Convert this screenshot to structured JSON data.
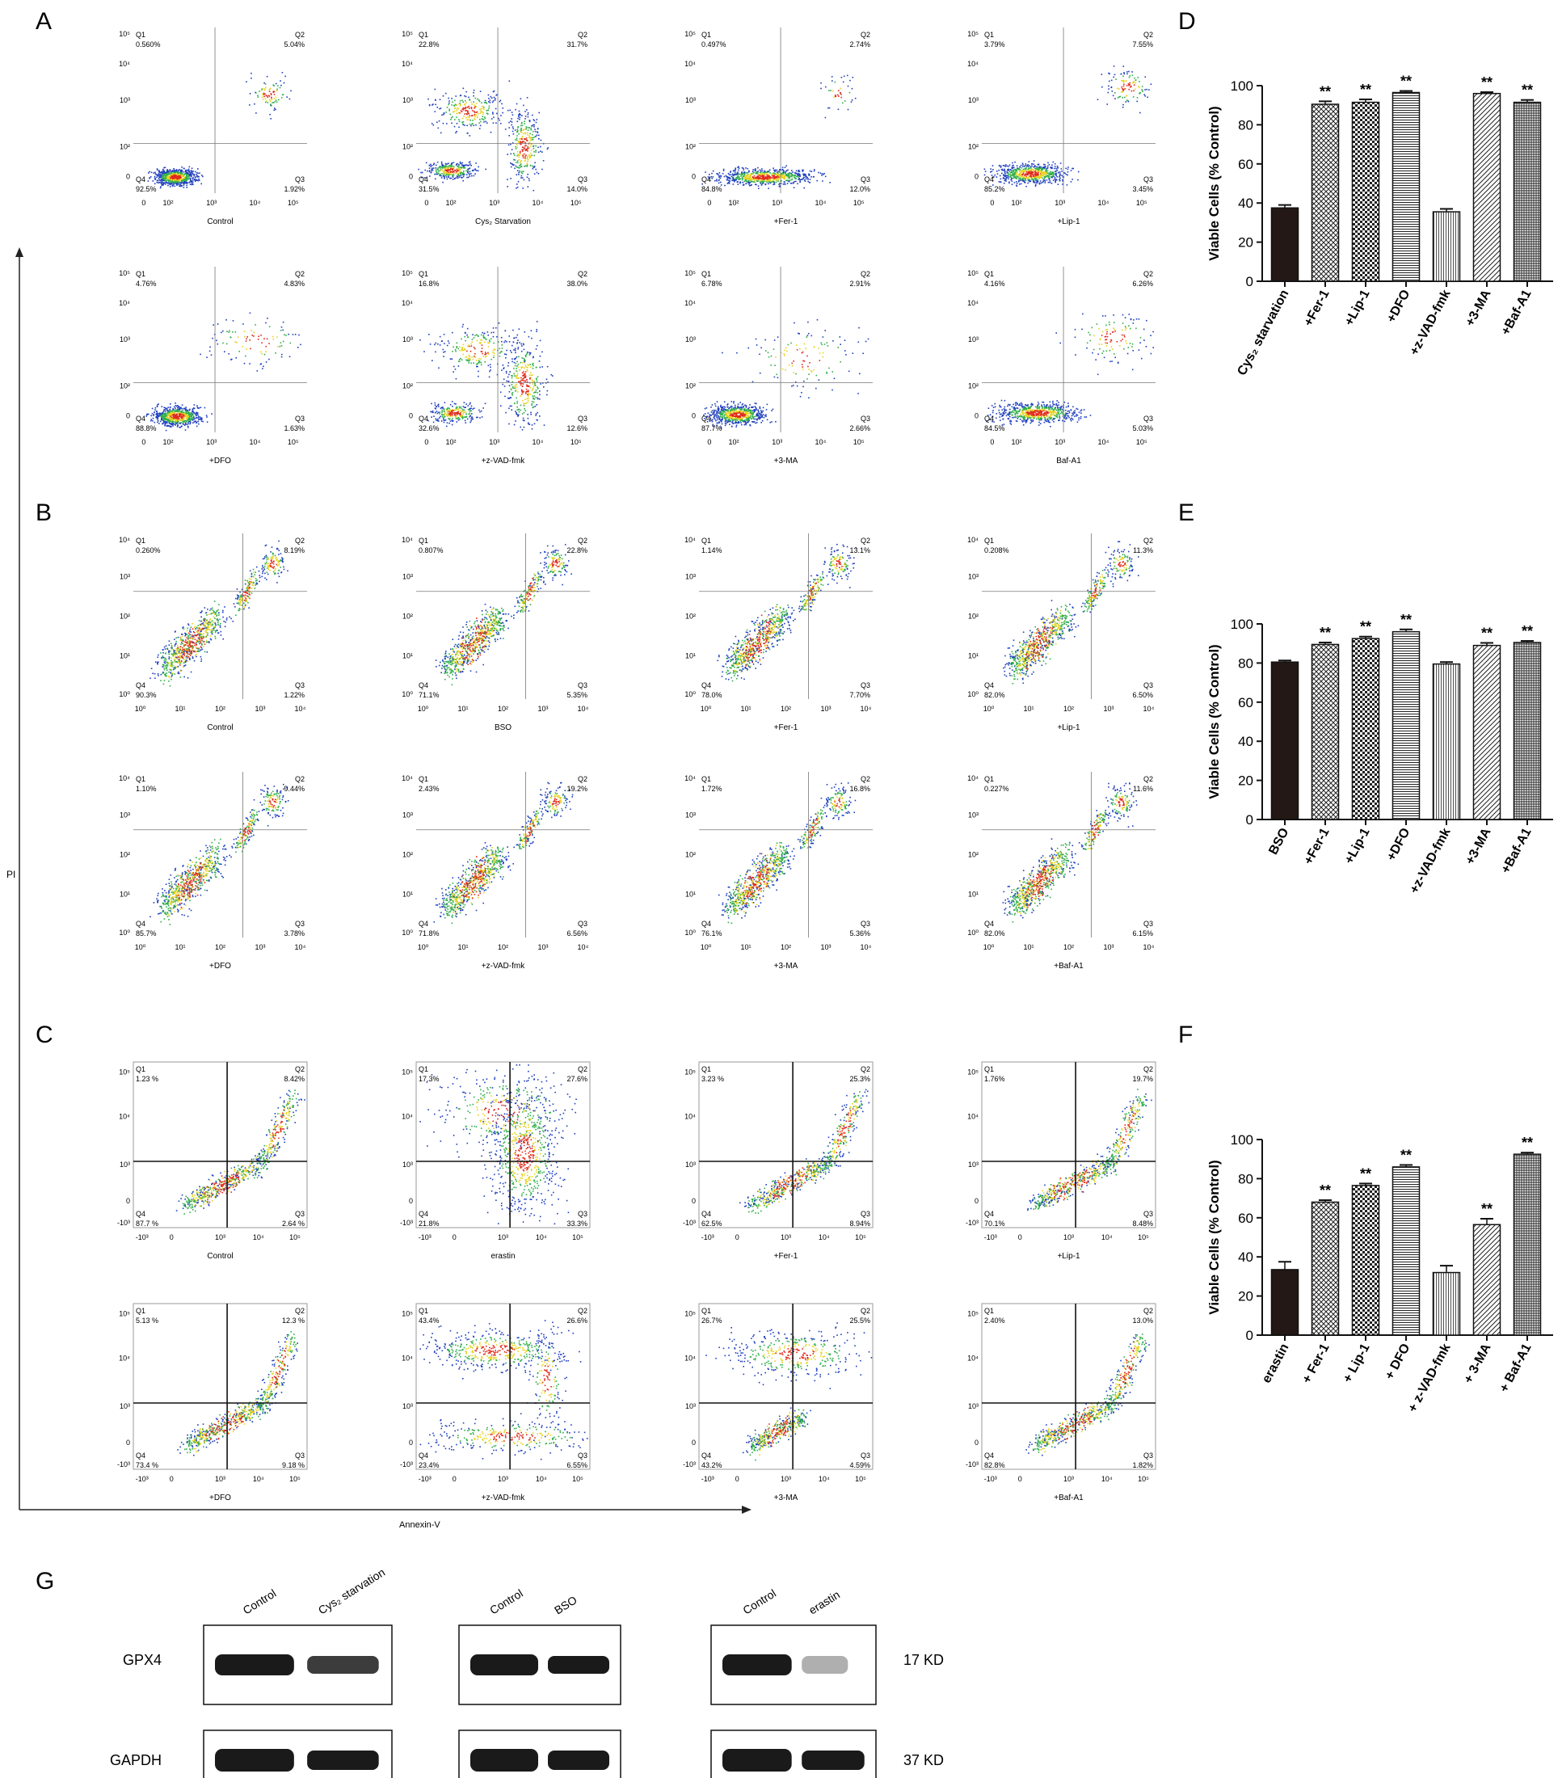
{
  "panel_letters": {
    "A": "A",
    "B": "B",
    "C": "C",
    "D": "D",
    "E": "E",
    "F": "F",
    "G": "G"
  },
  "axes": {
    "pi_label": "PI",
    "annexin_label": "Annexin-V"
  },
  "quadrant_names": [
    "Q1",
    "Q2",
    "Q3",
    "Q4"
  ],
  "flow_rows": [
    {
      "panel": "A",
      "style": "A",
      "ticks_x": [
        "0",
        "10²",
        "10³",
        "10⁴",
        "10⁵"
      ],
      "ticks_y": [
        "0",
        "10²",
        "10³",
        "10⁴",
        "10⁵"
      ],
      "plots": [
        {
          "label": "Control",
          "q": [
            "0.560%",
            "5.04%",
            "1.92%",
            "92.5%"
          ]
        },
        {
          "label": "Cys₂ Starvation",
          "q": [
            "22.8%",
            "31.7%",
            "14.0%",
            "31.5%"
          ]
        },
        {
          "label": "+Fer-1",
          "q": [
            "0.497%",
            "2.74%",
            "12.0%",
            "84.8%"
          ]
        },
        {
          "label": "+Lip-1",
          "q": [
            "3.79%",
            "7.55%",
            "3.45%",
            "85.2%"
          ]
        }
      ]
    },
    {
      "panel": "",
      "style": "A",
      "ticks_x": [
        "0",
        "10²",
        "10³",
        "10⁴",
        "10⁵"
      ],
      "ticks_y": [
        "0",
        "10²",
        "10³",
        "10⁴",
        "10⁵"
      ],
      "plots": [
        {
          "label": "+DFO",
          "q": [
            "4.76%",
            "4.83%",
            "1.63%",
            "88.8%"
          ]
        },
        {
          "label": "+z-VAD-fmk",
          "q": [
            "16.8%",
            "38.0%",
            "12.6%",
            "32.6%"
          ]
        },
        {
          "label": "+3-MA",
          "q": [
            "6.78%",
            "2.91%",
            "2.66%",
            "87.7%"
          ]
        },
        {
          "label": "Baf-A1",
          "q": [
            "4.16%",
            "6.26%",
            "5.03%",
            "84.5%"
          ]
        }
      ]
    },
    {
      "panel": "B",
      "style": "B",
      "ticks_x": [
        "10⁰",
        "10¹",
        "10²",
        "10³",
        "10⁴"
      ],
      "ticks_y": [
        "10⁰",
        "10¹",
        "10²",
        "10³",
        "10⁴"
      ],
      "plots": [
        {
          "label": "Control",
          "q": [
            "0.260%",
            "8.19%",
            "1.22%",
            "90.3%"
          ]
        },
        {
          "label": "BSO",
          "q": [
            "0.807%",
            "22.8%",
            "5.35%",
            "71.1%"
          ]
        },
        {
          "label": "+Fer-1",
          "q": [
            "1.14%",
            "13.1%",
            "7.70%",
            "78.0%"
          ]
        },
        {
          "label": "+Lip-1",
          "q": [
            "0.208%",
            "11.3%",
            "6.50%",
            "82.0%"
          ]
        }
      ]
    },
    {
      "panel": "",
      "style": "B",
      "ticks_x": [
        "10⁰",
        "10¹",
        "10²",
        "10³",
        "10⁴"
      ],
      "ticks_y": [
        "10⁰",
        "10¹",
        "10²",
        "10³",
        "10⁴"
      ],
      "plots": [
        {
          "label": "+DFO",
          "q": [
            "1.10%",
            "9.44%",
            "3.78%",
            "85.7%"
          ]
        },
        {
          "label": "+z-VAD-fmk",
          "q": [
            "2.43%",
            "19.2%",
            "6.56%",
            "71.8%"
          ]
        },
        {
          "label": "+3-MA",
          "q": [
            "1.72%",
            "16.8%",
            "5.36%",
            "76.1%"
          ]
        },
        {
          "label": "+Baf-A1",
          "q": [
            "0.227%",
            "11.6%",
            "6.15%",
            "82.0%"
          ]
        }
      ]
    },
    {
      "panel": "C",
      "style": "C",
      "ticks_x": [
        "-10³",
        "0",
        "10³",
        "10⁴",
        "10⁵"
      ],
      "ticks_y": [
        "-10³",
        "0",
        "10³",
        "10⁴",
        "10⁵"
      ],
      "plots": [
        {
          "label": "Control",
          "q": [
            "1.23 %",
            "8.42%",
            "2.64 %",
            "87.7 %"
          ]
        },
        {
          "label": "erastin",
          "q": [
            "17.3%",
            "27.6%",
            "33.3%",
            "21.8%"
          ]
        },
        {
          "label": "+Fer-1",
          "q": [
            "3.23 %",
            "25.3%",
            "8.94%",
            "62.5%"
          ]
        },
        {
          "label": "+Lip-1",
          "q": [
            "1.76%",
            "19.7%",
            "8.48%",
            "70.1%"
          ]
        }
      ]
    },
    {
      "panel": "",
      "style": "C",
      "ticks_x": [
        "-10³",
        "0",
        "10³",
        "10⁴",
        "10⁵"
      ],
      "ticks_y": [
        "-10³",
        "0",
        "10³",
        "10⁴",
        "10⁵"
      ],
      "plots": [
        {
          "label": "+DFO",
          "q": [
            "5.13 %",
            "12.3 %",
            "9.18 %",
            "73.4 %"
          ]
        },
        {
          "label": "+z-VAD-fmk",
          "q": [
            "43.4%",
            "26.6%",
            "6.55%",
            "23.4%"
          ]
        },
        {
          "label": "+3-MA",
          "q": [
            "26.7%",
            "25.5%",
            "4.59%",
            "43.2%"
          ]
        },
        {
          "label": "+Baf-A1",
          "q": [
            "2.40%",
            "13.0%",
            "1.82%",
            "82.8%"
          ]
        }
      ]
    }
  ],
  "chart_data": [
    {
      "type": "bar",
      "panel": "D",
      "title": "",
      "ylabel": "Viable Cells (% Control)",
      "ylim": [
        0,
        100
      ],
      "yticks": [
        0,
        20,
        40,
        60,
        80,
        100
      ],
      "categories": [
        "Cys₂ starvation",
        "+Fer-1",
        "+Lip-1",
        "+DFO",
        "+z-VAD-fmk",
        "+3-MA",
        "+Baf-A1"
      ],
      "values": [
        37.5,
        90.5,
        91.5,
        96.5,
        35.5,
        96.0,
        91.5
      ],
      "errors": [
        1.5,
        1.5,
        1.5,
        0.8,
        1.5,
        0.7,
        1.2
      ],
      "significance": [
        "",
        "**",
        "**",
        "**",
        "",
        "**",
        "**"
      ]
    },
    {
      "type": "bar",
      "panel": "E",
      "title": "",
      "ylabel": "Viable Cells (% Control)",
      "ylim": [
        0,
        100
      ],
      "yticks": [
        0,
        20,
        40,
        60,
        80,
        100
      ],
      "categories": [
        "BSO",
        "+Fer-1",
        "+Lip-1",
        "+DFO",
        "+z-VAD-fmk",
        "+3-MA",
        "+Baf-A1"
      ],
      "values": [
        80.5,
        89.5,
        92.5,
        96.0,
        79.5,
        89.0,
        90.5
      ],
      "errors": [
        0.8,
        1.0,
        1.0,
        1.2,
        1.0,
        1.3,
        0.8
      ],
      "significance": [
        "",
        "**",
        "**",
        "**",
        "",
        "**",
        "**"
      ]
    },
    {
      "type": "bar",
      "panel": "F",
      "title": "",
      "ylabel": "Viable Cells (% Control)",
      "ylim": [
        0,
        100
      ],
      "yticks": [
        0,
        20,
        40,
        60,
        80,
        100
      ],
      "categories": [
        "erastin",
        "+ Fer-1",
        "+ Lip-1",
        "+ DFO",
        "+ z-VAD-fmk",
        "+ 3-MA",
        "+ Baf-A1"
      ],
      "values": [
        33.5,
        68.0,
        76.5,
        86.0,
        32.0,
        56.5,
        92.5
      ],
      "errors": [
        4.0,
        1.0,
        1.0,
        1.0,
        3.5,
        3.0,
        0.8
      ],
      "significance": [
        "",
        "**",
        "**",
        "**",
        "",
        "**",
        "**"
      ]
    }
  ],
  "western": {
    "row_labels": [
      "GPX4",
      "GAPDH"
    ],
    "sizes": [
      "17 KD",
      "37 KD"
    ],
    "groups": [
      [
        "Control",
        "Cys₂ starvation"
      ],
      [
        "Control",
        "BSO"
      ],
      [
        "Control",
        "erastin"
      ]
    ]
  },
  "colors": {
    "bar_fill": "#231815",
    "dot_blue": "#1f3fbf",
    "dot_green": "#2fae4a",
    "dot_yellow": "#e6d21e",
    "dot_red": "#e02a1b"
  }
}
